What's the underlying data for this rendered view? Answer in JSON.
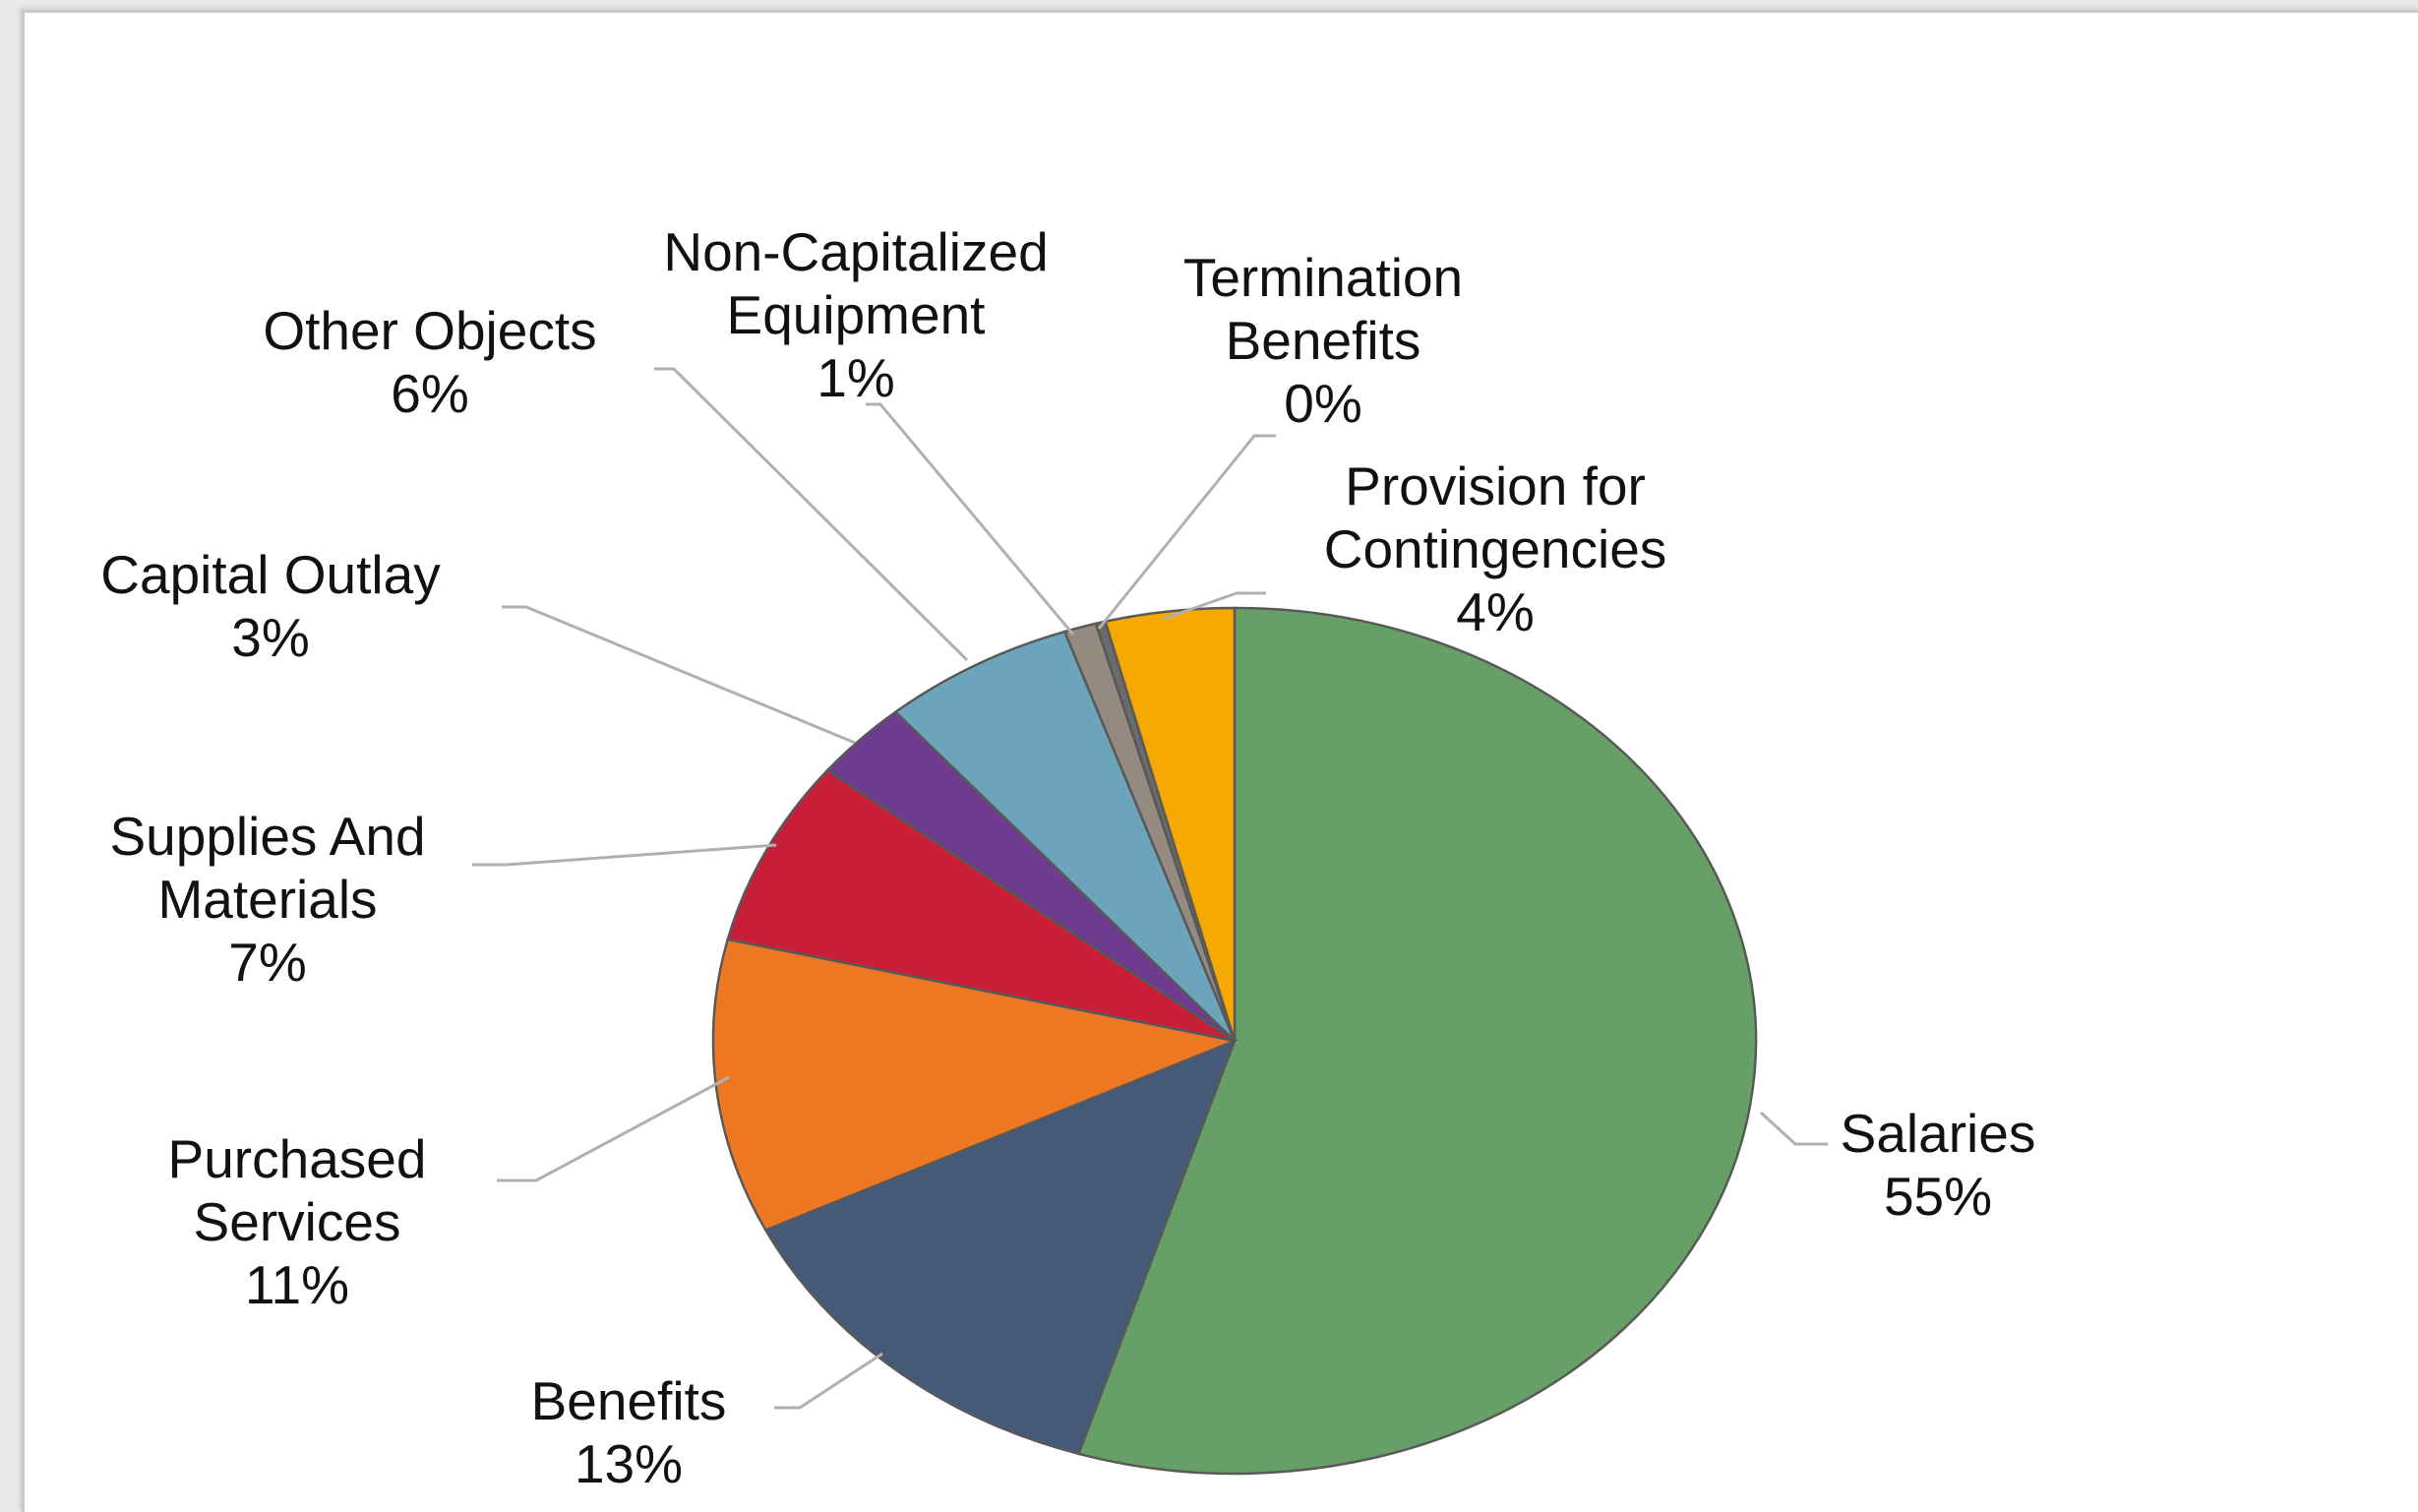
{
  "chart_data": {
    "type": "pie",
    "title": "",
    "legend": "none",
    "start_angle_deg": 0,
    "direction": "clockwise",
    "slices": [
      {
        "name": "Salaries",
        "label_lines": [
          "Salaries",
          "55%"
        ],
        "value": 55,
        "color": "#66a066"
      },
      {
        "name": "Benefits",
        "label_lines": [
          "Benefits",
          "13%"
        ],
        "value": 13,
        "color": "#455a78"
      },
      {
        "name": "Purchased Services",
        "label_lines": [
          "Purchased",
          "Services",
          "11%"
        ],
        "value": 11,
        "color": "#ee7722"
      },
      {
        "name": "Supplies And Materials",
        "label_lines": [
          "Supplies And",
          "Materials",
          "7%"
        ],
        "value": 7,
        "color": "#c81e38"
      },
      {
        "name": "Capital Outlay",
        "label_lines": [
          "Capital Outlay",
          "3%"
        ],
        "value": 3,
        "color": "#6e3b8e"
      },
      {
        "name": "Other Objects",
        "label_lines": [
          "Other Objects",
          "6%"
        ],
        "value": 6,
        "color": "#6ba4bb"
      },
      {
        "name": "Non-Capitalized Equipment",
        "label_lines": [
          "Non-Capitalized",
          "Equipment",
          "1%"
        ],
        "value": 1,
        "color": "#958a80"
      },
      {
        "name": "Termination Benefits",
        "label_lines": [
          "Termination",
          "Benefits",
          "0%"
        ],
        "value": 0.3,
        "color": "#6b6b6b"
      },
      {
        "name": "Provision for Contingencies",
        "label_lines": [
          "Provision for",
          "Contingencies",
          "4%"
        ],
        "value": 4,
        "color": "#f5a800"
      }
    ]
  }
}
